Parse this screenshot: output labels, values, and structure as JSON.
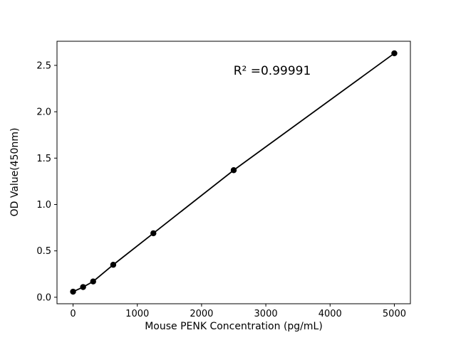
{
  "chart_data": {
    "type": "scatter",
    "x": [
      0,
      156.25,
      312.5,
      625,
      1250,
      2500,
      5000
    ],
    "y": [
      0.06,
      0.11,
      0.17,
      0.35,
      0.69,
      1.37,
      2.63
    ],
    "title": "",
    "xlabel": "Mouse PENK Concentration (pg/mL)",
    "ylabel": "OD Value(450nm)",
    "xticks": [
      0,
      1000,
      2000,
      3000,
      4000,
      5000
    ],
    "yticks": [
      0.0,
      0.5,
      1.0,
      1.5,
      2.0,
      2.5
    ],
    "xlim": [
      -250,
      5250
    ],
    "ylim": [
      -0.07,
      2.76
    ],
    "annotation": "R² =0.99991",
    "line": true,
    "grid": false,
    "legend_position": null,
    "marker_color": "#000000",
    "line_color": "#000000"
  }
}
